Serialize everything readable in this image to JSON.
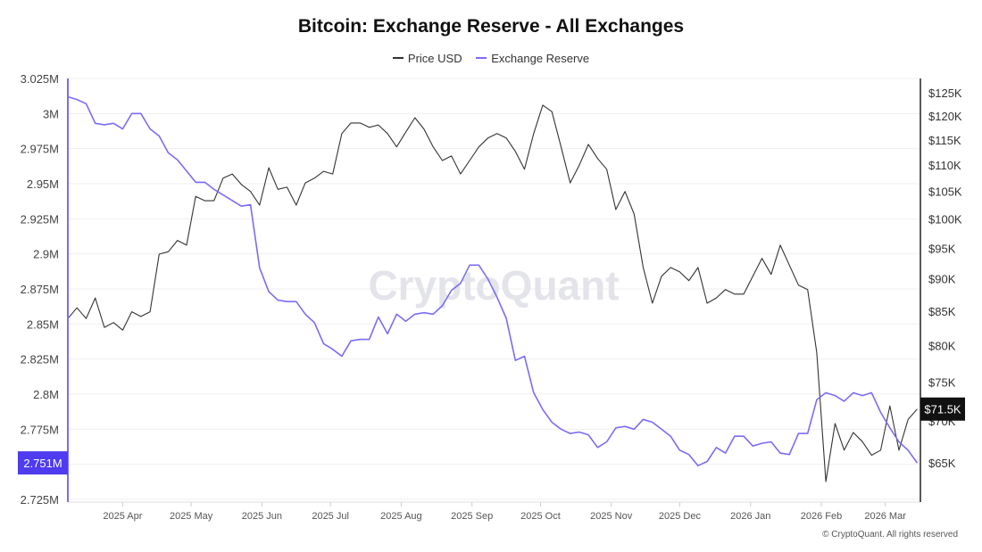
{
  "chart_data": {
    "type": "line",
    "title": "Bitcoin: Exchange Reserve - All Exchanges",
    "legend_position": "top",
    "grid": true,
    "watermark": "CryptoQuant",
    "copyright": "© CryptoQuant. All rights reserved",
    "x_tick_labels": [
      "2025 Apr",
      "2025 May",
      "2025 Jun",
      "2025 Jul",
      "2025 Aug",
      "2025 Sep",
      "2025 Oct",
      "2025 Nov",
      "2025 Dec",
      "2026 Jan",
      "2026 Feb",
      "2026 Mar"
    ],
    "x_tick_dates": [
      "2025-04-01",
      "2025-05-01",
      "2025-06-01",
      "2025-07-01",
      "2025-08-01",
      "2025-09-01",
      "2025-10-01",
      "2025-11-01",
      "2025-12-01",
      "2026-01-01",
      "2026-02-01",
      "2026-03-01"
    ],
    "xlim": [
      "2025-03-08",
      "2026-03-16"
    ],
    "y_left": {
      "ylim": [
        2.725,
        3.025
      ],
      "unit": "M",
      "tick_values": [
        3.025,
        3.0,
        2.975,
        2.95,
        2.925,
        2.9,
        2.875,
        2.85,
        2.825,
        2.8,
        2.775,
        2.75,
        2.725
      ],
      "tick_labels": [
        "3.025M",
        "3M",
        "2.975M",
        "2.95M",
        "2.925M",
        "2.9M",
        "2.875M",
        "2.85M",
        "2.825M",
        "2.8M",
        "2.775M",
        "",
        "2.725M"
      ],
      "last_value_label": "2.751M"
    },
    "y_right": {
      "scale": "log",
      "ylim": [
        61000,
        129000
      ],
      "tick_values": [
        125000,
        120000,
        115000,
        110000,
        105000,
        100000,
        95000,
        90000,
        85000,
        80000,
        75000,
        70000,
        65000
      ],
      "tick_labels": [
        "$125K",
        "$120K",
        "$115K",
        "$110K",
        "$105K",
        "$100K",
        "$95K",
        "$90K",
        "$85K",
        "$80K",
        "$75K",
        "$70K",
        "$65K"
      ],
      "last_value_label": "$71.5K"
    },
    "x": [
      "2025-03-08",
      "2025-03-12",
      "2025-03-16",
      "2025-03-20",
      "2025-03-24",
      "2025-03-28",
      "2025-04-01",
      "2025-04-05",
      "2025-04-09",
      "2025-04-13",
      "2025-04-17",
      "2025-04-21",
      "2025-04-25",
      "2025-04-29",
      "2025-05-03",
      "2025-05-07",
      "2025-05-11",
      "2025-05-15",
      "2025-05-19",
      "2025-05-23",
      "2025-05-27",
      "2025-05-31",
      "2025-06-04",
      "2025-06-08",
      "2025-06-12",
      "2025-06-16",
      "2025-06-20",
      "2025-06-24",
      "2025-06-28",
      "2025-07-02",
      "2025-07-06",
      "2025-07-10",
      "2025-07-14",
      "2025-07-18",
      "2025-07-22",
      "2025-07-26",
      "2025-07-30",
      "2025-08-03",
      "2025-08-07",
      "2025-08-11",
      "2025-08-15",
      "2025-08-19",
      "2025-08-23",
      "2025-08-27",
      "2025-08-31",
      "2025-09-04",
      "2025-09-08",
      "2025-09-12",
      "2025-09-16",
      "2025-09-20",
      "2025-09-24",
      "2025-09-28",
      "2025-10-02",
      "2025-10-06",
      "2025-10-10",
      "2025-10-14",
      "2025-10-18",
      "2025-10-22",
      "2025-10-26",
      "2025-10-30",
      "2025-11-03",
      "2025-11-07",
      "2025-11-11",
      "2025-11-15",
      "2025-11-19",
      "2025-11-23",
      "2025-11-27",
      "2025-12-01",
      "2025-12-05",
      "2025-12-09",
      "2025-12-13",
      "2025-12-17",
      "2025-12-21",
      "2025-12-25",
      "2025-12-29",
      "2026-01-02",
      "2026-01-06",
      "2026-01-10",
      "2026-01-14",
      "2026-01-18",
      "2026-01-22",
      "2026-01-26",
      "2026-01-30",
      "2026-02-03",
      "2026-02-07",
      "2026-02-11",
      "2026-02-15",
      "2026-02-19",
      "2026-02-23",
      "2026-02-27",
      "2026-03-03",
      "2026-03-07",
      "2026-03-11",
      "2026-03-15"
    ],
    "series": [
      {
        "name": "Price USD",
        "axis": "right",
        "color": "#333333",
        "values": [
          83900,
          85500,
          83900,
          87000,
          82600,
          83300,
          82200,
          84900,
          84200,
          84900,
          94000,
          94400,
          96300,
          95500,
          104100,
          103300,
          103300,
          107500,
          108300,
          106300,
          105000,
          102500,
          109500,
          105400,
          105800,
          102500,
          106600,
          107500,
          108800,
          108300,
          116300,
          118500,
          118500,
          117600,
          118100,
          116300,
          113600,
          116600,
          119600,
          117200,
          113600,
          110900,
          111800,
          108300,
          110900,
          113600,
          115400,
          116300,
          115400,
          112700,
          109200,
          116300,
          122300,
          120900,
          113600,
          106600,
          110000,
          114100,
          111300,
          109200,
          101700,
          105000,
          100900,
          91800,
          86200,
          90400,
          91800,
          91100,
          89700,
          91800,
          86200,
          87000,
          88300,
          87600,
          87600,
          90400,
          93300,
          90700,
          95500,
          92200,
          89000,
          88300,
          79000,
          62900,
          69700,
          66500,
          68600,
          67500,
          65900,
          66500,
          71900,
          66500,
          70200,
          71500
        ]
      },
      {
        "name": "Exchange Reserve",
        "axis": "left",
        "color": "#7b6cf6",
        "values": [
          3.012,
          3.01,
          3.007,
          2.993,
          2.992,
          2.993,
          2.989,
          3.0,
          3.0,
          2.989,
          2.984,
          2.972,
          2.967,
          2.959,
          2.951,
          2.951,
          2.946,
          2.942,
          2.938,
          2.934,
          2.935,
          2.89,
          2.873,
          2.867,
          2.866,
          2.866,
          2.857,
          2.851,
          2.836,
          2.832,
          2.827,
          2.838,
          2.839,
          2.839,
          2.855,
          2.843,
          2.857,
          2.852,
          2.857,
          2.858,
          2.857,
          2.863,
          2.874,
          2.879,
          2.892,
          2.892,
          2.882,
          2.869,
          2.854,
          2.824,
          2.827,
          2.801,
          2.789,
          2.78,
          2.775,
          2.772,
          2.773,
          2.771,
          2.762,
          2.766,
          2.776,
          2.777,
          2.775,
          2.782,
          2.78,
          2.775,
          2.77,
          2.76,
          2.757,
          2.749,
          2.752,
          2.762,
          2.758,
          2.77,
          2.77,
          2.763,
          2.765,
          2.766,
          2.758,
          2.757,
          2.772,
          2.772,
          2.796,
          2.801,
          2.799,
          2.795,
          2.801,
          2.799,
          2.801,
          2.787,
          2.776,
          2.766,
          2.76,
          2.751
        ]
      }
    ]
  }
}
